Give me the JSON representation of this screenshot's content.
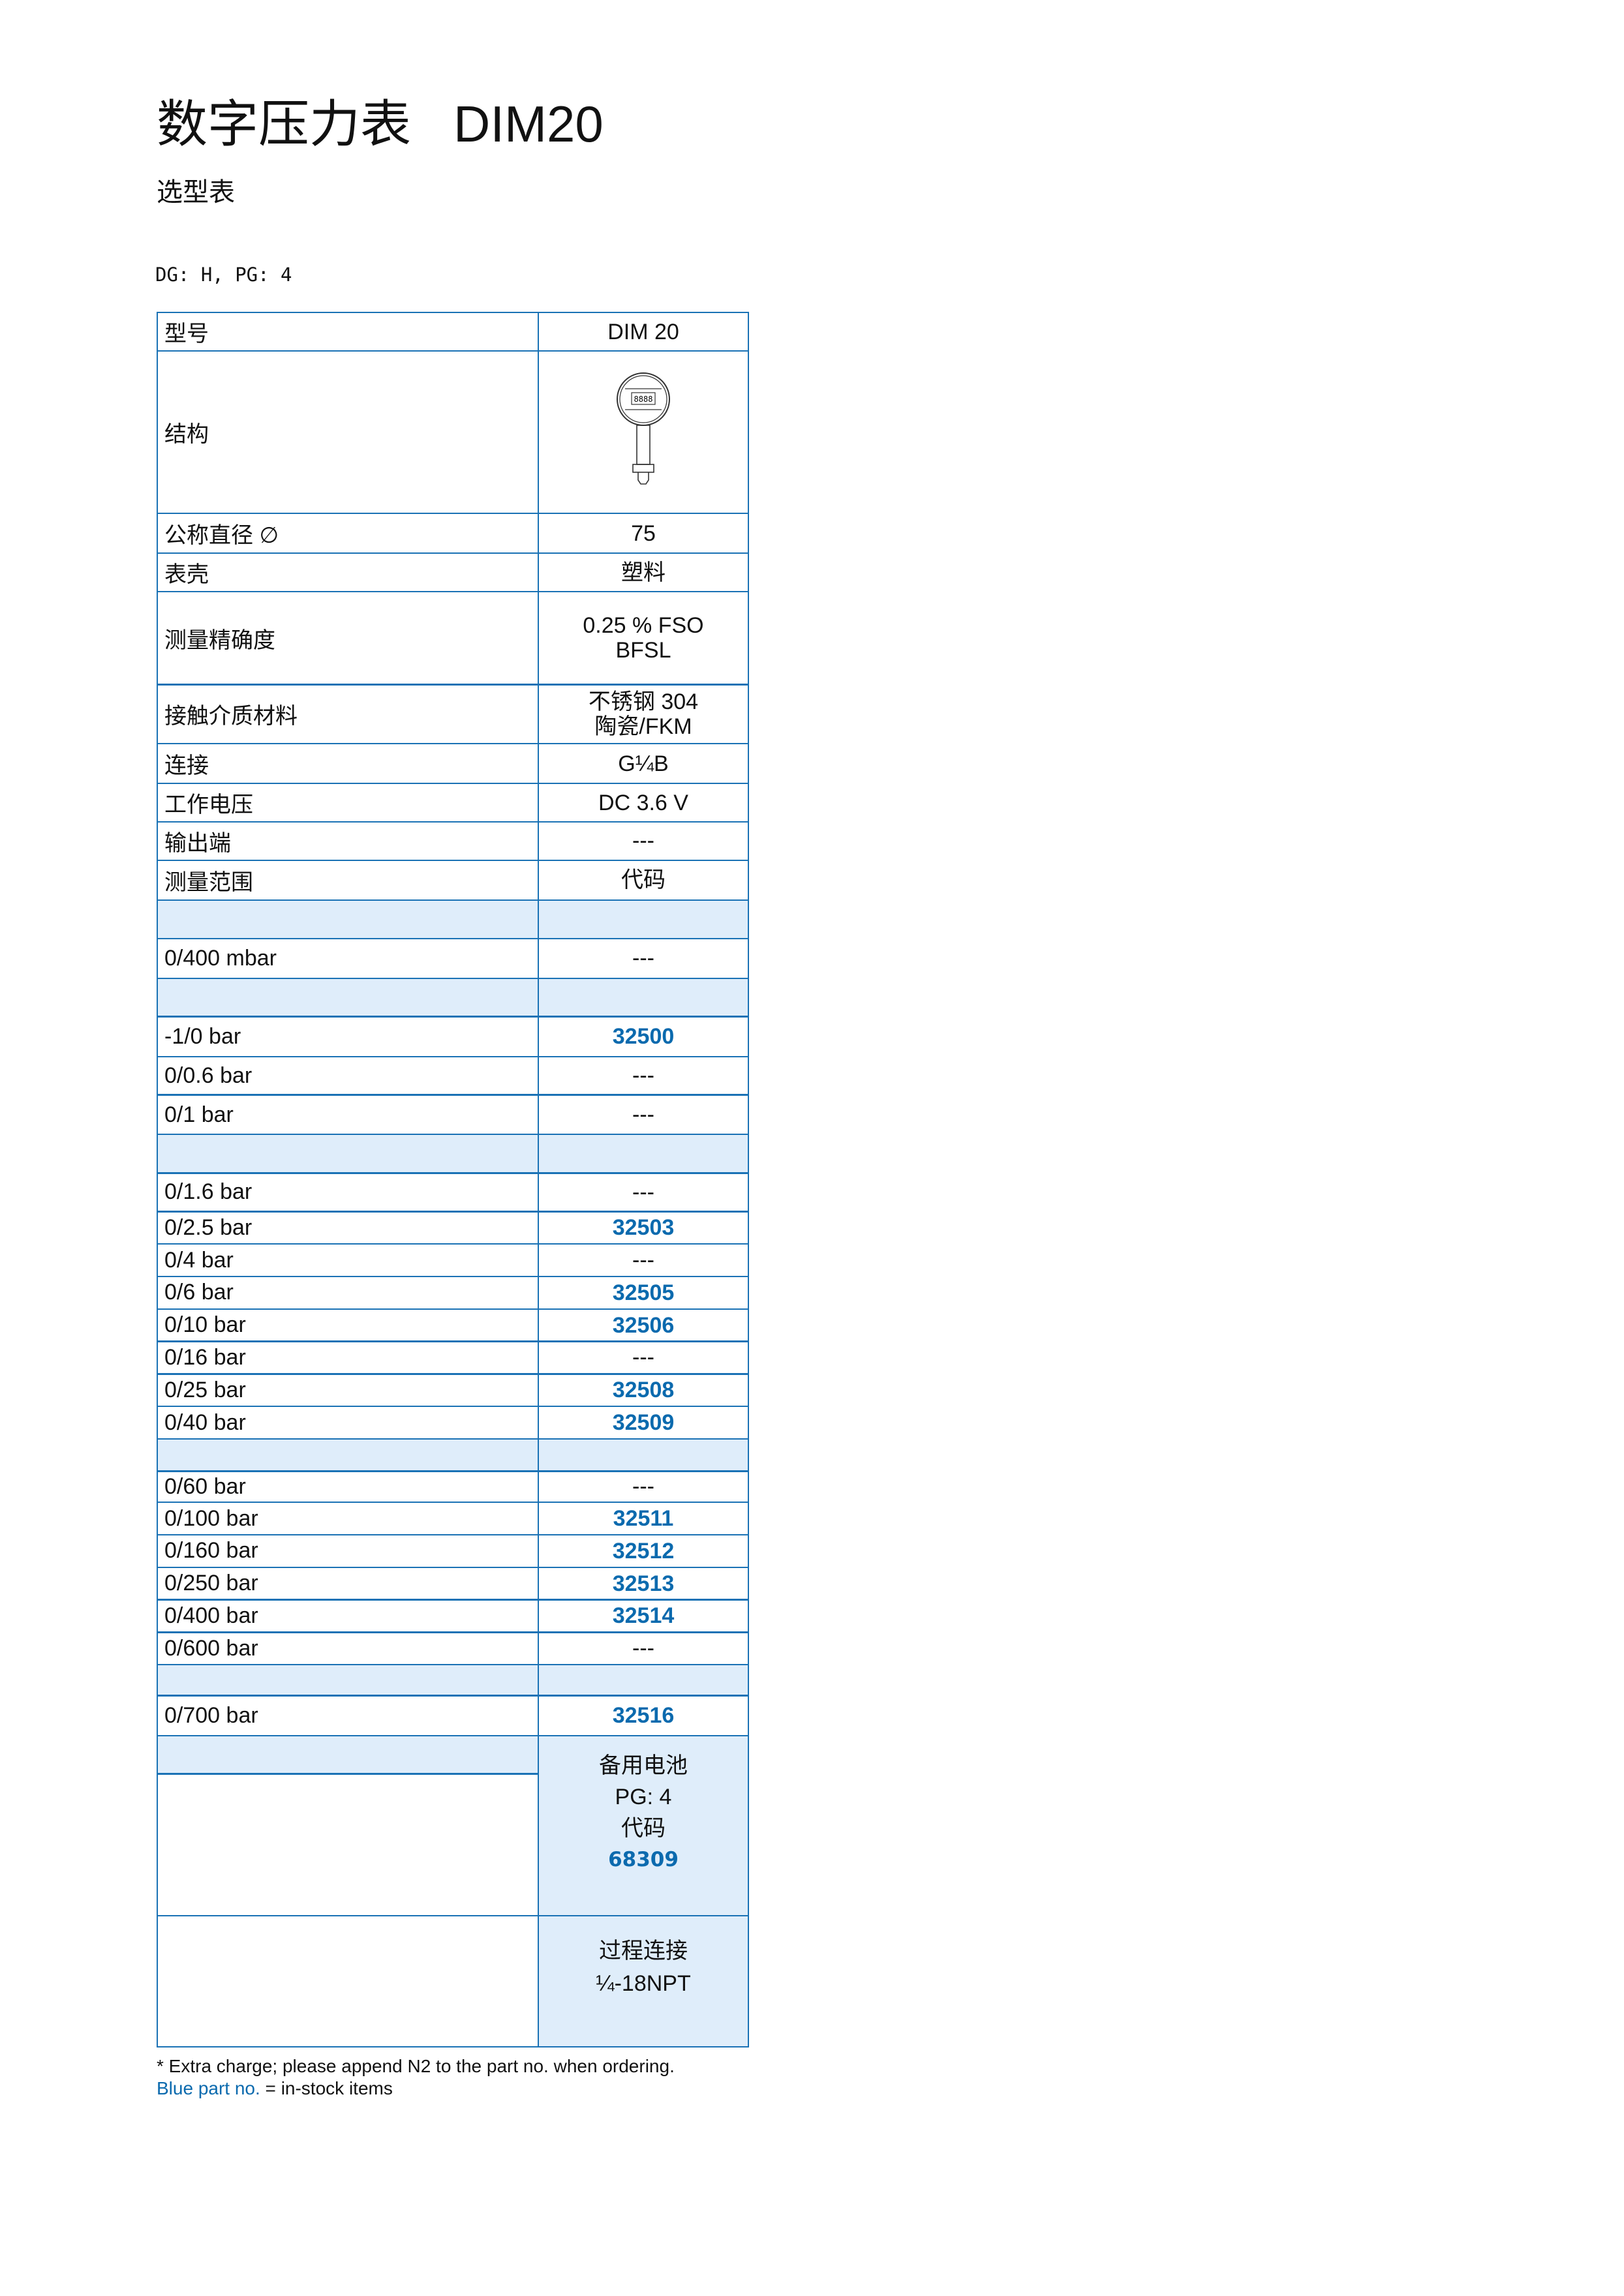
{
  "header": {
    "title": "数字压力表   DIM20",
    "subtitle": "选型表",
    "dg_pg": "DG: H, PG: 4"
  },
  "colors": {
    "border": "#1a72b5",
    "shade": "#dfedfa",
    "part_no_blue": "#0b6aae"
  },
  "table": {
    "rows": [
      {
        "label": "型号",
        "value": "DIM 20"
      },
      {
        "label": "结构",
        "value": "",
        "icon": "digital-pressure-gauge-drawing"
      },
      {
        "label": "公称直径 ∅",
        "value": "75"
      },
      {
        "label": "表壳",
        "value": "塑料"
      },
      {
        "label": "测量精确度",
        "value": "0.25 % FSO\nBFSL"
      },
      {
        "label": "接触介质材料",
        "value": "不锈钢 304\n陶瓷/FKM"
      },
      {
        "label": "连接",
        "value": "G¼B"
      },
      {
        "label": "工作电压",
        "value": "DC 3.6 V"
      },
      {
        "label": "输出端",
        "value": "---"
      },
      {
        "label": "测量范围",
        "value": "代码"
      },
      {
        "label": "",
        "value": "",
        "shaded": true
      },
      {
        "label": "0/400 mbar",
        "value": "---"
      },
      {
        "label": "",
        "value": "",
        "shaded": true
      },
      {
        "label": "-1/0 bar",
        "value": "32500",
        "blue": true
      },
      {
        "label": "0/0.6 bar",
        "value": "---"
      },
      {
        "label": "0/1 bar",
        "value": "---"
      },
      {
        "label": "",
        "value": "",
        "shaded": true
      },
      {
        "label": "0/1.6 bar",
        "value": "---"
      },
      {
        "label": "0/2.5 bar",
        "value": "32503",
        "blue": true
      },
      {
        "label": "0/4 bar",
        "value": "---"
      },
      {
        "label": "0/6 bar",
        "value": "32505",
        "blue": true
      },
      {
        "label": "0/10 bar",
        "value": "32506",
        "blue": true
      },
      {
        "label": "0/16 bar",
        "value": "---"
      },
      {
        "label": "0/25 bar",
        "value": "32508",
        "blue": true
      },
      {
        "label": "0/40 bar",
        "value": "32509",
        "blue": true
      },
      {
        "label": "",
        "value": "",
        "shaded": true
      },
      {
        "label": "0/60 bar",
        "value": "---"
      },
      {
        "label": "0/100 bar",
        "value": "32511",
        "blue": true
      },
      {
        "label": "0/160 bar",
        "value": "32512",
        "blue": true
      },
      {
        "label": "0/250 bar",
        "value": "32513",
        "blue": true
      },
      {
        "label": "0/400 bar",
        "value": "32514",
        "blue": true
      },
      {
        "label": "0/600 bar",
        "value": "---"
      },
      {
        "label": "",
        "value": "",
        "shaded": true
      },
      {
        "label": "0/700 bar",
        "value": "32516",
        "blue": true
      }
    ],
    "battery": {
      "title": "备用电池",
      "pg": "PG: 4",
      "code_label": "代码",
      "code": "68309"
    },
    "process": {
      "title": "过程连接",
      "value": "¼-18NPT"
    }
  },
  "footer": {
    "note": "* Extra charge; please append N2 to the part no. when ordering.",
    "legend_blue": "Blue part no.",
    "legend_rest": " = in-stock items"
  }
}
